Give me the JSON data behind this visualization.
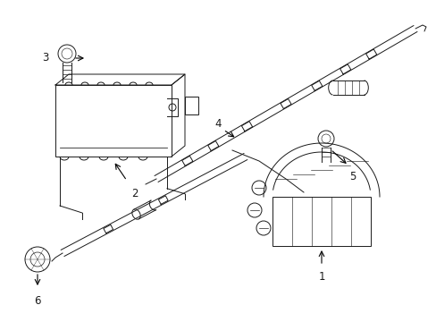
{
  "background_color": "#ffffff",
  "line_color": "#1a1a1a",
  "figure_width": 4.89,
  "figure_height": 3.6,
  "dpi": 100,
  "label_fontsize": 8.5,
  "lw": 0.7
}
